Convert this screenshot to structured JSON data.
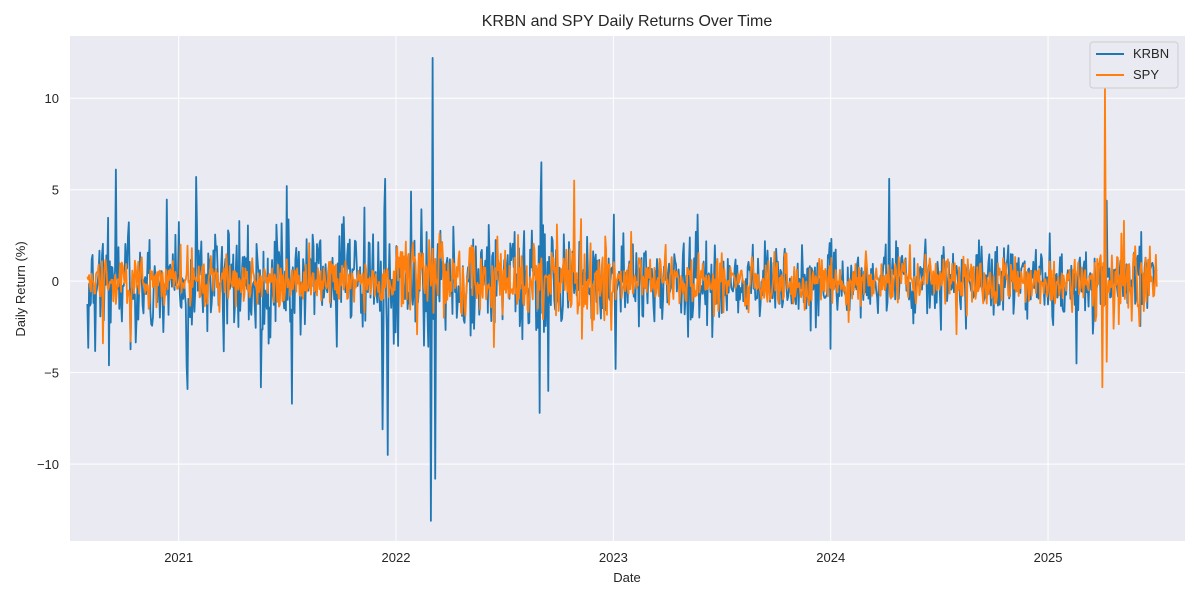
{
  "chart_data": {
    "type": "line",
    "title": "KRBN and SPY Daily Returns Over Time",
    "xlabel": "Date",
    "ylabel": "Daily Return (%)",
    "x_range": [
      "2020-07-01",
      "2025-08-18"
    ],
    "xlim": [
      2020.5,
      2025.63
    ],
    "ylim": [
      -14.2,
      13.4
    ],
    "data_x_range": [
      2020.58,
      2025.5
    ],
    "x_ticks": [
      {
        "value": 2021,
        "label": "2021"
      },
      {
        "value": 2022,
        "label": "2022"
      },
      {
        "value": 2023,
        "label": "2023"
      },
      {
        "value": 2024,
        "label": "2024"
      },
      {
        "value": 2025,
        "label": "2025"
      }
    ],
    "y_ticks": [
      {
        "value": 10,
        "label": "10"
      },
      {
        "value": 5,
        "label": "5"
      },
      {
        "value": 0,
        "label": "0"
      },
      {
        "value": -5,
        "label": "−5"
      },
      {
        "value": -10,
        "label": "−10"
      }
    ],
    "grid": true,
    "legend_position": "top-right",
    "background": "#eaeaf2",
    "series": [
      {
        "name": "KRBN",
        "color": "#1f77b4",
        "volatility": [
          {
            "to": 2021.0,
            "sd": 2.0
          },
          {
            "to": 2022.8,
            "sd": 2.0
          },
          {
            "to": 2023.5,
            "sd": 1.4
          },
          {
            "to": 2025.6,
            "sd": 1.2
          }
        ],
        "peaks": [
          {
            "x": 2020.71,
            "y": 6.1
          },
          {
            "x": 2020.68,
            "y": -4.6
          },
          {
            "x": 2021.04,
            "y": -5.9
          },
          {
            "x": 2021.08,
            "y": 5.7
          },
          {
            "x": 2021.38,
            "y": 5.5
          },
          {
            "x": 2021.38,
            "y": -5.8
          },
          {
            "x": 2021.52,
            "y": -6.7
          },
          {
            "x": 2021.94,
            "y": -8.1
          },
          {
            "x": 2021.95,
            "y": 5.6
          },
          {
            "x": 2021.96,
            "y": -9.5
          },
          {
            "x": 2022.07,
            "y": 4.9
          },
          {
            "x": 2022.16,
            "y": -13.1
          },
          {
            "x": 2022.17,
            "y": 12.2
          },
          {
            "x": 2022.18,
            "y": -10.8
          },
          {
            "x": 2022.66,
            "y": -7.2
          },
          {
            "x": 2022.67,
            "y": 6.5
          },
          {
            "x": 2022.7,
            "y": -6.0
          },
          {
            "x": 2023.01,
            "y": -4.8
          },
          {
            "x": 2024.0,
            "y": -3.7
          },
          {
            "x": 2024.27,
            "y": 5.6
          },
          {
            "x": 2025.13,
            "y": -4.5
          },
          {
            "x": 2025.27,
            "y": 4.4
          }
        ]
      },
      {
        "name": "SPY",
        "color": "#ff7f0e",
        "volatility": [
          {
            "to": 2022.0,
            "sd": 0.8
          },
          {
            "to": 2023.0,
            "sd": 1.5
          },
          {
            "to": 2025.2,
            "sd": 0.9
          },
          {
            "to": 2025.6,
            "sd": 1.3
          }
        ],
        "peaks": [
          {
            "x": 2020.65,
            "y": -3.4
          },
          {
            "x": 2020.78,
            "y": -3.3
          },
          {
            "x": 2022.45,
            "y": -3.6
          },
          {
            "x": 2022.74,
            "y": 3.1
          },
          {
            "x": 2022.82,
            "y": 5.5
          },
          {
            "x": 2022.85,
            "y": 3.4
          },
          {
            "x": 2023.08,
            "y": 2.7
          },
          {
            "x": 2024.58,
            "y": -2.9
          },
          {
            "x": 2025.25,
            "y": -5.8
          },
          {
            "x": 2025.26,
            "y": 10.5
          },
          {
            "x": 2025.27,
            "y": -4.4
          },
          {
            "x": 2025.3,
            "y": -2.6
          },
          {
            "x": 2025.35,
            "y": 3.3
          }
        ]
      }
    ]
  }
}
